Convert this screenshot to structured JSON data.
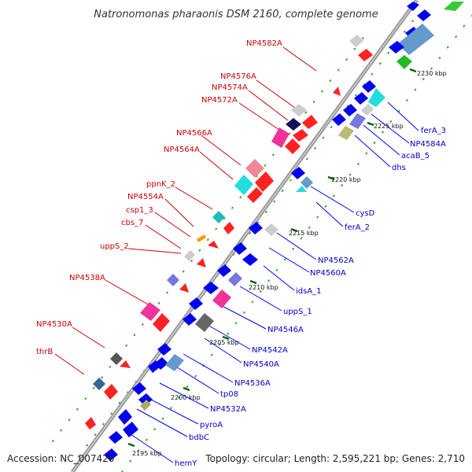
{
  "title": "Natronomonas pharaonis DSM 2160, complete genome",
  "footer": {
    "accession": "Accession: NC_007426",
    "summary": "Topology: circular; Length: 2,595,221 bp; Genes: 2,710"
  },
  "colors": {
    "backbone": "#999999",
    "red_label": "#cc0000",
    "blue_label": "#0000cc",
    "tick": "#006600",
    "dot": "#33aa33"
  },
  "ticks": [
    "2195 kbp",
    "2200 kbp",
    "2205 kbp",
    "2210 kbp",
    "2215 kbp",
    "2220 kbp",
    "2225 kbp",
    "2230 kbp"
  ],
  "labels_left": [
    "NP4582A",
    "NP4576A",
    "NP4574A",
    "NP4572A",
    "NP4566A",
    "NP4564A",
    "ppnK_2",
    "NP4554A",
    "csp1_3",
    "cbs_7",
    "uppS_2",
    "NP4538A",
    "NP4530A",
    "thrB"
  ],
  "labels_right": [
    "ferA_3",
    "NP4584A",
    "acaB_5",
    "dhs",
    "cysD",
    "ferA_2",
    "NP4562A",
    "NP4560A",
    "idsA_1",
    "uppS_1",
    "NP4546A",
    "NP4542A",
    "NP4540A",
    "NP4536A",
    "tp08",
    "NP4532A",
    "pyroA",
    "bdbC",
    "hemY"
  ]
}
